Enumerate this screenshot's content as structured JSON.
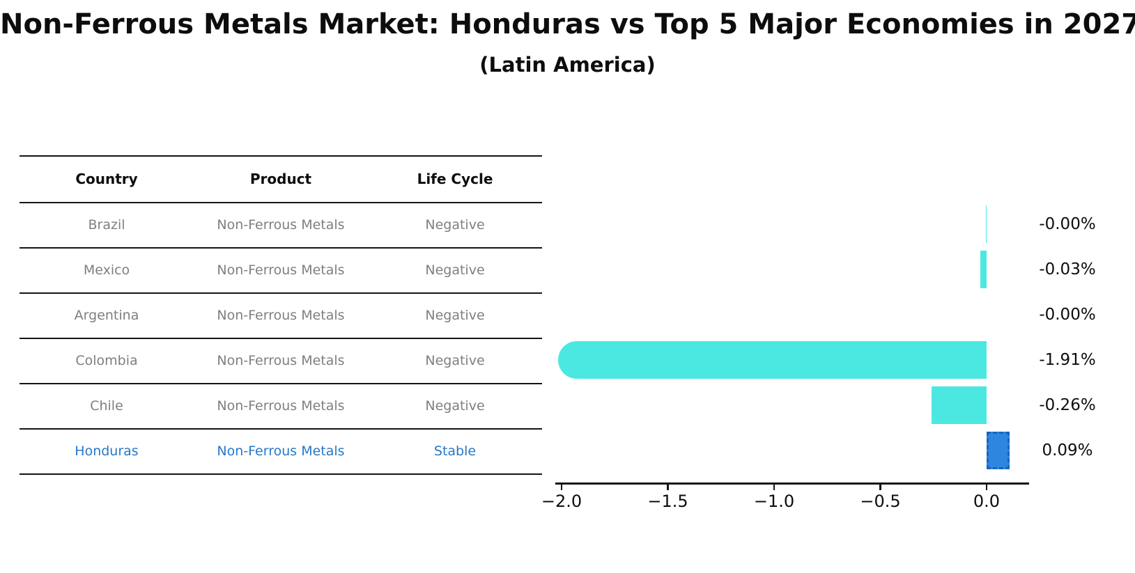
{
  "header": {
    "title": "Non-Ferrous Metals Market: Honduras vs Top 5 Major Economies in 2027",
    "subtitle": "(Latin America)"
  },
  "table": {
    "columns": [
      "Country",
      "Product",
      "Life Cycle"
    ],
    "rows": [
      {
        "country": "Brazil",
        "product": "Non-Ferrous Metals",
        "life_cycle": "Negative",
        "highlight": false
      },
      {
        "country": "Mexico",
        "product": "Non-Ferrous Metals",
        "life_cycle": "Negative",
        "highlight": false
      },
      {
        "country": "Argentina",
        "product": "Non-Ferrous Metals",
        "life_cycle": "Negative",
        "highlight": false
      },
      {
        "country": "Colombia",
        "product": "Non-Ferrous Metals",
        "life_cycle": "Negative",
        "highlight": false
      },
      {
        "country": "Chile",
        "product": "Non-Ferrous Metals",
        "life_cycle": "Negative",
        "highlight": false
      },
      {
        "country": "Honduras",
        "product": "Non-Ferrous Metals",
        "life_cycle": "Stable",
        "highlight": true
      }
    ]
  },
  "chart_data": {
    "type": "bar",
    "orientation": "horizontal",
    "title": "Non-Ferrous Metals Market: Honduras vs Top 5 Major Economies in 2027",
    "subtitle": "(Latin America)",
    "categories": [
      "Brazil",
      "Mexico",
      "Argentina",
      "Colombia",
      "Chile",
      "Honduras"
    ],
    "values": [
      -0.004,
      -0.03,
      -0.001,
      -1.91,
      -0.26,
      0.09
    ],
    "value_labels": [
      "-0.00%",
      "-0.03%",
      "-0.00%",
      "-1.91%",
      "-0.26%",
      "0.09%"
    ],
    "xtick_labels": [
      "−2.0",
      "−1.5",
      "−1.0",
      "−0.5",
      "0.0"
    ],
    "xtick_values": [
      -2.0,
      -1.5,
      -1.0,
      -0.5,
      0.0
    ],
    "xlim": [
      -2.03,
      0.2
    ],
    "grid": false,
    "legend": false,
    "bar_color": "#4BE8E2",
    "highlight_index": 5,
    "highlight_bar_color": "#2E86DE",
    "highlight_border_color": "#1A62C2",
    "highlight_text_color": "#2878C8"
  }
}
